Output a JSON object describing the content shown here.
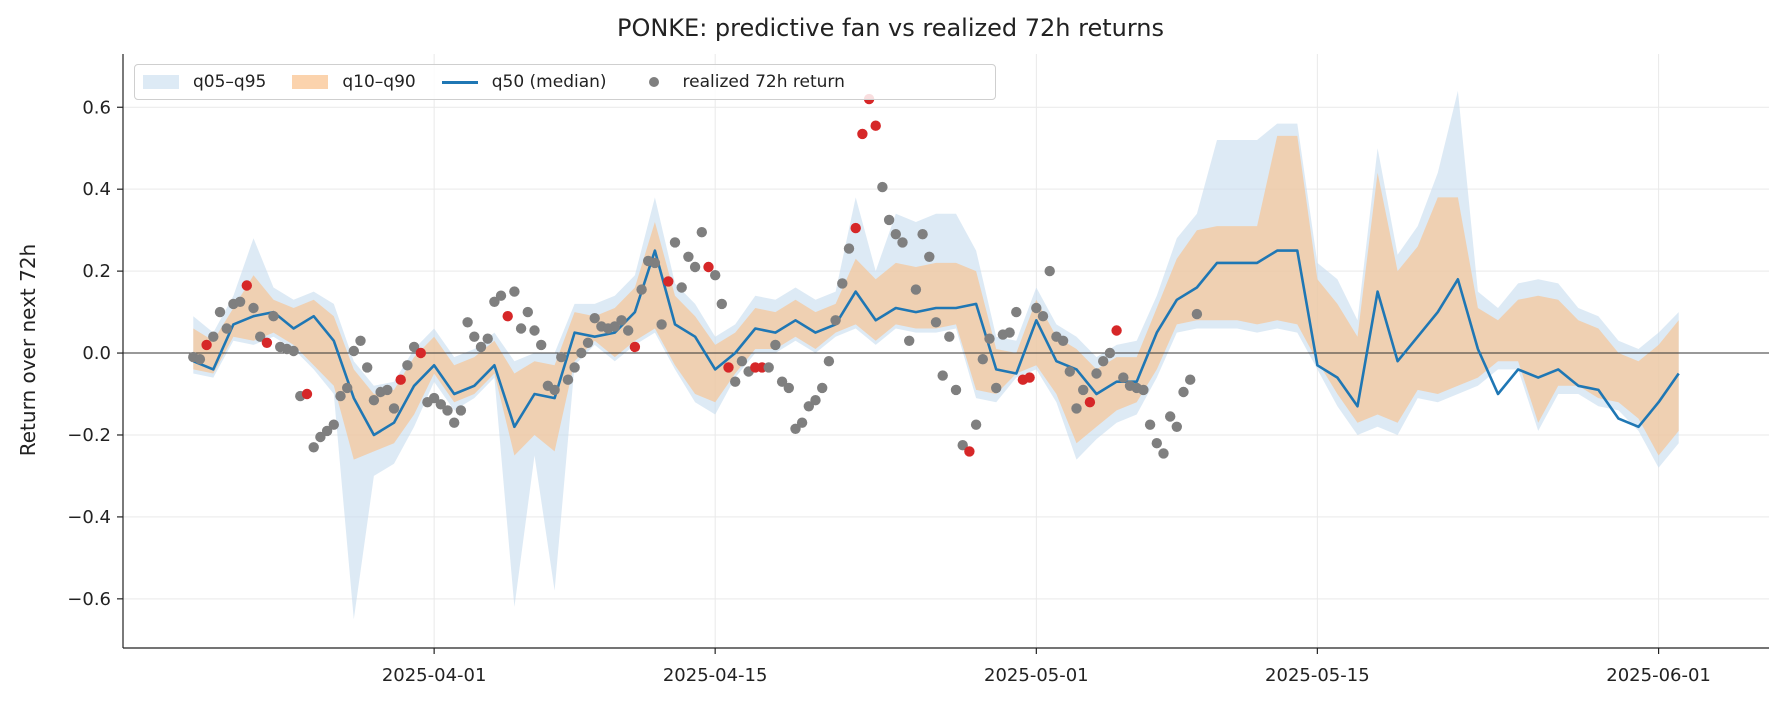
{
  "colors": {
    "outer_band": "#c6dcee",
    "inner_band": "#f6c596",
    "median": "#1f77b4",
    "point_inside": "#7f7f7f",
    "point_outside": "#d62728",
    "zero_line": "#333333"
  },
  "chart_data": {
    "type": "line",
    "title": "PONKE: predictive fan vs realized 72h returns",
    "xlabel": "",
    "ylabel": "Return over next 72h",
    "ylim": [
      -0.72,
      0.73
    ],
    "xlim": [
      "2025-03-16T12:00",
      "2025-06-06T12:00"
    ],
    "x_ticks": [
      "2025-04-01",
      "2025-04-15",
      "2025-05-01",
      "2025-05-15",
      "2025-06-01"
    ],
    "y_ticks": [
      -0.6,
      -0.4,
      -0.2,
      0.0,
      0.2,
      0.4,
      0.6
    ],
    "y_tick_labels": [
      "−0.6",
      "−0.4",
      "−0.2",
      "0.0",
      "0.2",
      "0.4",
      "0.6"
    ],
    "grid": true,
    "zero_line": true,
    "legend_position": "top-left",
    "legend": {
      "outer_band": "q05–q95",
      "inner_band": "q10–q90",
      "median": "q50 (median)",
      "points": "realized 72h return"
    },
    "dates": [
      "2025-03-20",
      "2025-03-21",
      "2025-03-22",
      "2025-03-23",
      "2025-03-24",
      "2025-03-25",
      "2025-03-26",
      "2025-03-27",
      "2025-03-28",
      "2025-03-29",
      "2025-03-30",
      "2025-03-31",
      "2025-04-01",
      "2025-04-02",
      "2025-04-03",
      "2025-04-04",
      "2025-04-05",
      "2025-04-06",
      "2025-04-07",
      "2025-04-08",
      "2025-04-09",
      "2025-04-10",
      "2025-04-11",
      "2025-04-12",
      "2025-04-13",
      "2025-04-14",
      "2025-04-15",
      "2025-04-16",
      "2025-04-17",
      "2025-04-18",
      "2025-04-19",
      "2025-04-20",
      "2025-04-21",
      "2025-04-22",
      "2025-04-23",
      "2025-04-24",
      "2025-04-25",
      "2025-04-26",
      "2025-04-27",
      "2025-04-28",
      "2025-04-29",
      "2025-04-30",
      "2025-05-01",
      "2025-05-02",
      "2025-05-03",
      "2025-05-04",
      "2025-05-05",
      "2025-05-06",
      "2025-05-07",
      "2025-05-08",
      "2025-05-09",
      "2025-05-10",
      "2025-05-11",
      "2025-05-12",
      "2025-05-13",
      "2025-05-14",
      "2025-05-15",
      "2025-05-16",
      "2025-05-17",
      "2025-05-18",
      "2025-05-19",
      "2025-05-20",
      "2025-05-21",
      "2025-05-22",
      "2025-05-23",
      "2025-05-24",
      "2025-05-25",
      "2025-05-26",
      "2025-05-27",
      "2025-05-28",
      "2025-05-29",
      "2025-05-30",
      "2025-05-31",
      "2025-06-01",
      "2025-06-02"
    ],
    "q05": [
      -0.05,
      -0.06,
      0.03,
      0.02,
      0.04,
      0.01,
      -0.04,
      -0.1,
      -0.65,
      -0.3,
      -0.27,
      -0.18,
      -0.07,
      -0.14,
      -0.11,
      -0.06,
      -0.62,
      -0.25,
      -0.58,
      -0.03,
      0.02,
      -0.02,
      0.02,
      0.05,
      -0.04,
      -0.12,
      -0.15,
      -0.06,
      0.0,
      0.0,
      0.03,
      0.0,
      0.04,
      0.06,
      0.02,
      0.06,
      0.05,
      0.05,
      0.06,
      -0.11,
      -0.12,
      -0.06,
      -0.04,
      -0.12,
      -0.26,
      -0.21,
      -0.17,
      -0.15,
      -0.06,
      0.05,
      0.06,
      0.06,
      0.06,
      0.05,
      0.06,
      0.05,
      -0.04,
      -0.13,
      -0.2,
      -0.18,
      -0.2,
      -0.11,
      -0.12,
      -0.1,
      -0.08,
      -0.04,
      -0.04,
      -0.19,
      -0.1,
      -0.1,
      -0.13,
      -0.14,
      -0.19,
      -0.28,
      -0.22
    ],
    "q10": [
      -0.04,
      -0.05,
      0.04,
      0.03,
      0.05,
      0.02,
      -0.03,
      -0.08,
      -0.26,
      -0.24,
      -0.22,
      -0.15,
      -0.05,
      -0.12,
      -0.1,
      -0.05,
      -0.25,
      -0.2,
      -0.24,
      -0.02,
      0.03,
      -0.01,
      0.03,
      0.06,
      -0.03,
      -0.1,
      -0.12,
      -0.05,
      0.01,
      0.01,
      0.04,
      0.01,
      0.05,
      0.07,
      0.03,
      0.07,
      0.06,
      0.06,
      0.07,
      -0.09,
      -0.1,
      -0.05,
      -0.03,
      -0.1,
      -0.22,
      -0.18,
      -0.14,
      -0.12,
      -0.04,
      0.07,
      0.08,
      0.08,
      0.08,
      0.07,
      0.08,
      0.07,
      -0.02,
      -0.1,
      -0.17,
      -0.15,
      -0.17,
      -0.09,
      -0.1,
      -0.08,
      -0.06,
      -0.02,
      -0.02,
      -0.17,
      -0.08,
      -0.08,
      -0.11,
      -0.12,
      -0.16,
      -0.25,
      -0.19
    ],
    "q50": [
      -0.02,
      -0.04,
      0.07,
      0.09,
      0.1,
      0.06,
      0.09,
      0.03,
      -0.11,
      -0.2,
      -0.17,
      -0.08,
      -0.03,
      -0.1,
      -0.08,
      -0.03,
      -0.18,
      -0.1,
      -0.11,
      0.05,
      0.04,
      0.05,
      0.1,
      0.25,
      0.07,
      0.04,
      -0.04,
      0.0,
      0.06,
      0.05,
      0.08,
      0.05,
      0.07,
      0.15,
      0.08,
      0.11,
      0.1,
      0.11,
      0.11,
      0.12,
      -0.04,
      -0.05,
      0.08,
      -0.02,
      -0.04,
      -0.1,
      -0.07,
      -0.07,
      0.05,
      0.13,
      0.16,
      0.22,
      0.22,
      0.22,
      0.25,
      0.25,
      -0.03,
      -0.06,
      -0.13,
      0.15,
      -0.02,
      0.04,
      0.1,
      0.18,
      0.01,
      -0.1,
      -0.04,
      -0.06,
      -0.04,
      -0.08,
      -0.09,
      -0.16,
      -0.18,
      -0.12,
      -0.05
    ],
    "q90": [
      0.06,
      0.03,
      0.11,
      0.19,
      0.13,
      0.11,
      0.13,
      0.09,
      -0.04,
      -0.1,
      -0.09,
      -0.01,
      0.04,
      -0.03,
      -0.01,
      0.03,
      -0.05,
      -0.02,
      -0.03,
      0.1,
      0.09,
      0.11,
      0.16,
      0.32,
      0.14,
      0.09,
      0.02,
      0.05,
      0.11,
      0.1,
      0.13,
      0.1,
      0.12,
      0.23,
      0.18,
      0.22,
      0.21,
      0.22,
      0.22,
      0.2,
      0.01,
      0.0,
      0.13,
      0.04,
      0.01,
      -0.04,
      -0.01,
      -0.01,
      0.11,
      0.23,
      0.3,
      0.31,
      0.31,
      0.31,
      0.53,
      0.53,
      0.18,
      0.12,
      0.04,
      0.44,
      0.2,
      0.26,
      0.38,
      0.38,
      0.11,
      0.08,
      0.13,
      0.14,
      0.13,
      0.08,
      0.06,
      0.0,
      -0.02,
      0.02,
      0.08
    ],
    "q95": [
      0.09,
      0.05,
      0.14,
      0.28,
      0.16,
      0.13,
      0.15,
      0.12,
      -0.02,
      -0.08,
      -0.07,
      0.01,
      0.06,
      -0.01,
      0.01,
      0.05,
      -0.02,
      0.0,
      0.0,
      0.12,
      0.12,
      0.14,
      0.19,
      0.38,
      0.17,
      0.12,
      0.04,
      0.07,
      0.14,
      0.13,
      0.16,
      0.13,
      0.15,
      0.38,
      0.2,
      0.34,
      0.32,
      0.34,
      0.34,
      0.25,
      0.04,
      0.03,
      0.16,
      0.07,
      0.04,
      -0.01,
      0.02,
      0.03,
      0.14,
      0.28,
      0.34,
      0.52,
      0.52,
      0.52,
      0.56,
      0.56,
      0.22,
      0.18,
      0.08,
      0.5,
      0.24,
      0.31,
      0.44,
      0.64,
      0.15,
      0.11,
      0.17,
      0.18,
      0.17,
      0.11,
      0.09,
      0.03,
      0.01,
      0.05,
      0.1
    ],
    "realized_points": [
      {
        "x": "2025-03-20T00:00",
        "y": -0.01
      },
      {
        "x": "2025-03-20T08:00",
        "y": -0.015
      },
      {
        "x": "2025-03-20T16:00",
        "y": 0.02,
        "outside": true
      },
      {
        "x": "2025-03-21T00:00",
        "y": 0.04
      },
      {
        "x": "2025-03-21T08:00",
        "y": 0.1
      },
      {
        "x": "2025-03-21T16:00",
        "y": 0.06
      },
      {
        "x": "2025-03-22T00:00",
        "y": 0.12
      },
      {
        "x": "2025-03-22T08:00",
        "y": 0.125
      },
      {
        "x": "2025-03-22T16:00",
        "y": 0.165,
        "outside": true
      },
      {
        "x": "2025-03-23T00:00",
        "y": 0.11
      },
      {
        "x": "2025-03-23T08:00",
        "y": 0.04
      },
      {
        "x": "2025-03-23T16:00",
        "y": 0.025,
        "outside": true
      },
      {
        "x": "2025-03-24T00:00",
        "y": 0.09
      },
      {
        "x": "2025-03-24T08:00",
        "y": 0.015
      },
      {
        "x": "2025-03-24T16:00",
        "y": 0.01
      },
      {
        "x": "2025-03-25T00:00",
        "y": 0.005
      },
      {
        "x": "2025-03-25T08:00",
        "y": -0.105
      },
      {
        "x": "2025-03-25T16:00",
        "y": -0.1,
        "outside": true
      },
      {
        "x": "2025-03-26T00:00",
        "y": -0.23
      },
      {
        "x": "2025-03-26T08:00",
        "y": -0.205
      },
      {
        "x": "2025-03-26T16:00",
        "y": -0.19
      },
      {
        "x": "2025-03-27T00:00",
        "y": -0.175
      },
      {
        "x": "2025-03-27T08:00",
        "y": -0.105
      },
      {
        "x": "2025-03-27T16:00",
        "y": -0.085
      },
      {
        "x": "2025-03-28T00:00",
        "y": 0.005
      },
      {
        "x": "2025-03-28T08:00",
        "y": 0.03
      },
      {
        "x": "2025-03-28T16:00",
        "y": -0.035
      },
      {
        "x": "2025-03-29T00:00",
        "y": -0.115
      },
      {
        "x": "2025-03-29T08:00",
        "y": -0.095
      },
      {
        "x": "2025-03-29T16:00",
        "y": -0.09
      },
      {
        "x": "2025-03-30T00:00",
        "y": -0.135
      },
      {
        "x": "2025-03-30T08:00",
        "y": -0.065,
        "outside": true
      },
      {
        "x": "2025-03-30T16:00",
        "y": -0.03
      },
      {
        "x": "2025-03-31T00:00",
        "y": 0.015
      },
      {
        "x": "2025-03-31T08:00",
        "y": 0.0,
        "outside": true
      },
      {
        "x": "2025-03-31T16:00",
        "y": -0.12
      },
      {
        "x": "2025-04-01T00:00",
        "y": -0.11
      },
      {
        "x": "2025-04-01T08:00",
        "y": -0.125
      },
      {
        "x": "2025-04-01T16:00",
        "y": -0.14
      },
      {
        "x": "2025-04-02T00:00",
        "y": -0.17
      },
      {
        "x": "2025-04-02T08:00",
        "y": -0.14
      },
      {
        "x": "2025-04-02T16:00",
        "y": 0.075
      },
      {
        "x": "2025-04-03T00:00",
        "y": 0.04
      },
      {
        "x": "2025-04-03T08:00",
        "y": 0.015
      },
      {
        "x": "2025-04-03T16:00",
        "y": 0.035
      },
      {
        "x": "2025-04-04T00:00",
        "y": 0.125
      },
      {
        "x": "2025-04-04T08:00",
        "y": 0.14
      },
      {
        "x": "2025-04-04T16:00",
        "y": 0.09,
        "outside": true
      },
      {
        "x": "2025-04-05T00:00",
        "y": 0.15
      },
      {
        "x": "2025-04-05T08:00",
        "y": 0.06
      },
      {
        "x": "2025-04-05T16:00",
        "y": 0.1
      },
      {
        "x": "2025-04-06T00:00",
        "y": 0.055
      },
      {
        "x": "2025-04-06T08:00",
        "y": 0.02
      },
      {
        "x": "2025-04-06T16:00",
        "y": -0.08
      },
      {
        "x": "2025-04-07T00:00",
        "y": -0.09
      },
      {
        "x": "2025-04-07T08:00",
        "y": -0.01
      },
      {
        "x": "2025-04-07T16:00",
        "y": -0.065
      },
      {
        "x": "2025-04-08T00:00",
        "y": -0.035
      },
      {
        "x": "2025-04-08T08:00",
        "y": 0.0
      },
      {
        "x": "2025-04-08T16:00",
        "y": 0.025
      },
      {
        "x": "2025-04-09T00:00",
        "y": 0.085
      },
      {
        "x": "2025-04-09T08:00",
        "y": 0.065
      },
      {
        "x": "2025-04-09T16:00",
        "y": 0.06
      },
      {
        "x": "2025-04-10T00:00",
        "y": 0.065
      },
      {
        "x": "2025-04-10T08:00",
        "y": 0.08
      },
      {
        "x": "2025-04-10T16:00",
        "y": 0.055
      },
      {
        "x": "2025-04-11T00:00",
        "y": 0.015,
        "outside": true
      },
      {
        "x": "2025-04-11T08:00",
        "y": 0.155
      },
      {
        "x": "2025-04-11T16:00",
        "y": 0.225
      },
      {
        "x": "2025-04-12T00:00",
        "y": 0.22
      },
      {
        "x": "2025-04-12T08:00",
        "y": 0.07
      },
      {
        "x": "2025-04-12T16:00",
        "y": 0.175,
        "outside": true
      },
      {
        "x": "2025-04-13T00:00",
        "y": 0.27
      },
      {
        "x": "2025-04-13T08:00",
        "y": 0.16
      },
      {
        "x": "2025-04-13T16:00",
        "y": 0.235
      },
      {
        "x": "2025-04-14T00:00",
        "y": 0.21
      },
      {
        "x": "2025-04-14T08:00",
        "y": 0.295
      },
      {
        "x": "2025-04-14T16:00",
        "y": 0.21,
        "outside": true
      },
      {
        "x": "2025-04-15T00:00",
        "y": 0.19
      },
      {
        "x": "2025-04-15T08:00",
        "y": 0.12
      },
      {
        "x": "2025-04-15T16:00",
        "y": -0.035,
        "outside": true
      },
      {
        "x": "2025-04-16T00:00",
        "y": -0.07
      },
      {
        "x": "2025-04-16T08:00",
        "y": -0.02
      },
      {
        "x": "2025-04-16T16:00",
        "y": -0.045
      },
      {
        "x": "2025-04-17T00:00",
        "y": -0.035,
        "outside": true
      },
      {
        "x": "2025-04-17T08:00",
        "y": -0.035,
        "outside": true
      },
      {
        "x": "2025-04-17T16:00",
        "y": -0.035
      },
      {
        "x": "2025-04-18T00:00",
        "y": 0.02
      },
      {
        "x": "2025-04-18T08:00",
        "y": -0.07
      },
      {
        "x": "2025-04-18T16:00",
        "y": -0.085
      },
      {
        "x": "2025-04-19T00:00",
        "y": -0.185
      },
      {
        "x": "2025-04-19T08:00",
        "y": -0.17
      },
      {
        "x": "2025-04-19T16:00",
        "y": -0.13
      },
      {
        "x": "2025-04-20T00:00",
        "y": -0.115
      },
      {
        "x": "2025-04-20T08:00",
        "y": -0.085
      },
      {
        "x": "2025-04-20T16:00",
        "y": -0.02
      },
      {
        "x": "2025-04-21T00:00",
        "y": 0.08
      },
      {
        "x": "2025-04-21T08:00",
        "y": 0.17
      },
      {
        "x": "2025-04-21T16:00",
        "y": 0.255
      },
      {
        "x": "2025-04-22T00:00",
        "y": 0.305,
        "outside": true
      },
      {
        "x": "2025-04-22T08:00",
        "y": 0.535,
        "outside": true
      },
      {
        "x": "2025-04-22T16:00",
        "y": 0.62,
        "outside": true
      },
      {
        "x": "2025-04-23T00:00",
        "y": 0.555,
        "outside": true
      },
      {
        "x": "2025-04-23T08:00",
        "y": 0.405
      },
      {
        "x": "2025-04-23T16:00",
        "y": 0.325
      },
      {
        "x": "2025-04-24T00:00",
        "y": 0.29
      },
      {
        "x": "2025-04-24T08:00",
        "y": 0.27
      },
      {
        "x": "2025-04-24T16:00",
        "y": 0.03
      },
      {
        "x": "2025-04-25T00:00",
        "y": 0.155
      },
      {
        "x": "2025-04-25T08:00",
        "y": 0.29
      },
      {
        "x": "2025-04-25T16:00",
        "y": 0.235
      },
      {
        "x": "2025-04-26T00:00",
        "y": 0.075
      },
      {
        "x": "2025-04-26T08:00",
        "y": -0.055
      },
      {
        "x": "2025-04-26T16:00",
        "y": 0.04
      },
      {
        "x": "2025-04-27T00:00",
        "y": -0.09
      },
      {
        "x": "2025-04-27T08:00",
        "y": -0.225
      },
      {
        "x": "2025-04-27T16:00",
        "y": -0.24,
        "outside": true
      },
      {
        "x": "2025-04-28T00:00",
        "y": -0.175
      },
      {
        "x": "2025-04-28T08:00",
        "y": -0.015
      },
      {
        "x": "2025-04-28T16:00",
        "y": 0.035
      },
      {
        "x": "2025-04-29T00:00",
        "y": -0.085
      },
      {
        "x": "2025-04-29T08:00",
        "y": 0.045
      },
      {
        "x": "2025-04-29T16:00",
        "y": 0.05
      },
      {
        "x": "2025-04-30T00:00",
        "y": 0.1
      },
      {
        "x": "2025-04-30T08:00",
        "y": -0.065,
        "outside": true
      },
      {
        "x": "2025-04-30T16:00",
        "y": -0.06,
        "outside": true
      },
      {
        "x": "2025-05-01T00:00",
        "y": 0.11
      },
      {
        "x": "2025-05-01T08:00",
        "y": 0.09
      },
      {
        "x": "2025-05-01T16:00",
        "y": 0.2
      },
      {
        "x": "2025-05-02T00:00",
        "y": 0.04
      },
      {
        "x": "2025-05-02T08:00",
        "y": 0.03
      },
      {
        "x": "2025-05-02T16:00",
        "y": -0.045
      },
      {
        "x": "2025-05-03T00:00",
        "y": -0.135
      },
      {
        "x": "2025-05-03T08:00",
        "y": -0.09
      },
      {
        "x": "2025-05-03T16:00",
        "y": -0.12,
        "outside": true
      },
      {
        "x": "2025-05-04T00:00",
        "y": -0.05
      },
      {
        "x": "2025-05-04T08:00",
        "y": -0.02
      },
      {
        "x": "2025-05-04T16:00",
        "y": 0.0
      },
      {
        "x": "2025-05-05T00:00",
        "y": 0.055,
        "outside": true
      },
      {
        "x": "2025-05-05T08:00",
        "y": -0.06
      },
      {
        "x": "2025-05-05T16:00",
        "y": -0.08
      },
      {
        "x": "2025-05-06T00:00",
        "y": -0.085
      },
      {
        "x": "2025-05-06T08:00",
        "y": -0.09
      },
      {
        "x": "2025-05-06T16:00",
        "y": -0.175
      },
      {
        "x": "2025-05-07T00:00",
        "y": -0.22
      },
      {
        "x": "2025-05-07T08:00",
        "y": -0.245
      },
      {
        "x": "2025-05-07T16:00",
        "y": -0.155
      },
      {
        "x": "2025-05-08T00:00",
        "y": -0.18
      },
      {
        "x": "2025-05-08T08:00",
        "y": -0.095
      },
      {
        "x": "2025-05-08T16:00",
        "y": -0.065
      },
      {
        "x": "2025-05-09T00:00",
        "y": 0.095
      }
    ]
  }
}
